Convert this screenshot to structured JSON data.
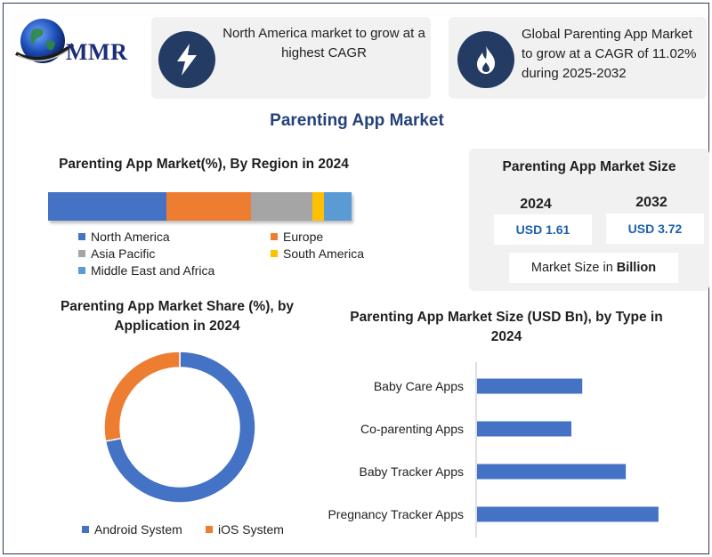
{
  "brand": {
    "logo_text": "MMR",
    "logo_icon": "globe-icon"
  },
  "info_cards": [
    {
      "icon": "lightning-bolt-icon",
      "text": "North America market to grow at a highest CAGR"
    },
    {
      "icon": "flame-icon",
      "text": "Global Parenting App Market to grow at a CAGR of 11.02% during 2025-2032"
    }
  ],
  "title": "Parenting App Market",
  "colors": {
    "navy": "#243b63",
    "blue": "#4472c4",
    "orange": "#ed7d31",
    "gray": "#a5a5a5",
    "yellow": "#ffc000",
    "lightblue": "#5b9bd5"
  },
  "market_size": {
    "title": "Parenting App Market Size",
    "years": [
      {
        "year": "2024",
        "value": "USD 1.61"
      },
      {
        "year": "2032",
        "value": "USD 3.72"
      }
    ],
    "unit_prefix": "Market Size in",
    "unit_bold": "Billion"
  },
  "chart_data": [
    {
      "type": "bar",
      "orientation": "horizontal-stacked",
      "title": "Parenting App Market(%), By Region in 2024",
      "series": [
        {
          "name": "North America",
          "values": [
            39
          ],
          "color": "#4472c4"
        },
        {
          "name": "Europe",
          "values": [
            28
          ],
          "color": "#ed7d31"
        },
        {
          "name": "Asia Pacific",
          "values": [
            20
          ],
          "color": "#a5a5a5"
        },
        {
          "name": "South America",
          "values": [
            4
          ],
          "color": "#ffc000"
        },
        {
          "name": "Middle East and Africa",
          "values": [
            9
          ],
          "color": "#5b9bd5"
        }
      ],
      "legend": "bottom"
    },
    {
      "type": "pie",
      "donut": true,
      "title": "Parenting App Market Share (%), by Application in 2024",
      "categories": [
        "Android System",
        "iOS System"
      ],
      "values": [
        72,
        28
      ],
      "colors": [
        "#4472c4",
        "#ed7d31"
      ],
      "legend": "bottom"
    },
    {
      "type": "bar",
      "orientation": "horizontal",
      "title": "Parenting App Market Size (USD Bn), by Type in 2024",
      "categories": [
        "Baby Care Apps",
        "Co-parenting Apps",
        "Baby Tracker Apps",
        "Pregnancy Tracker Apps"
      ],
      "values": [
        0.29,
        0.26,
        0.41,
        0.5
      ],
      "color": "#4472c4",
      "xlim": [
        0,
        0.52
      ]
    }
  ]
}
